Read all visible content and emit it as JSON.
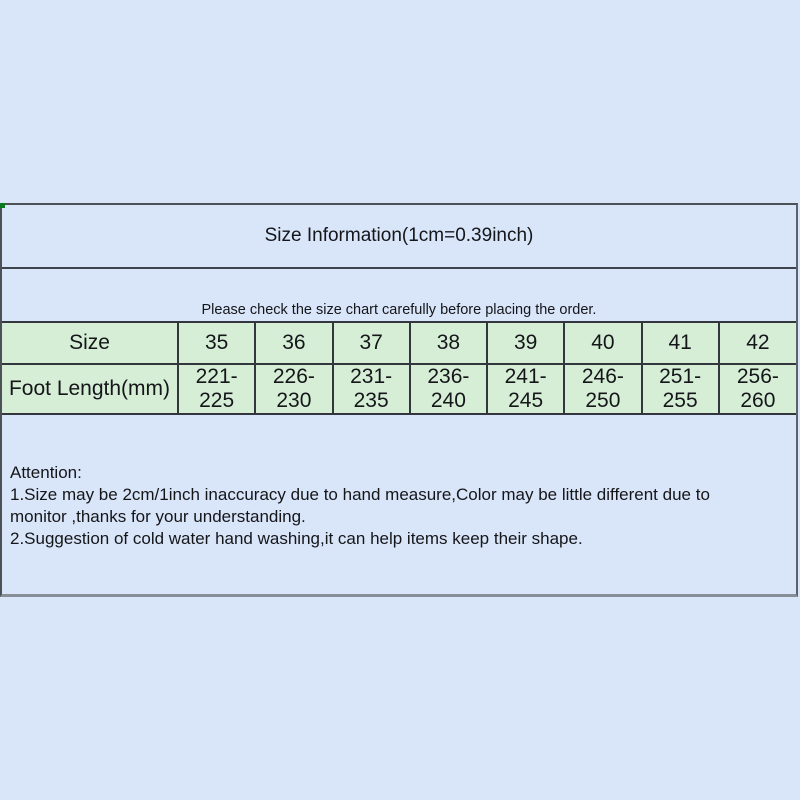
{
  "colors": {
    "background": "#d9e5f8",
    "table_green": "#d6eed6",
    "grid_line": "#33373d",
    "panel_border_dark": "#4c5157",
    "panel_border_light": "#888e96",
    "corner_mark_green": "#0a7a1e",
    "text": "#15161a"
  },
  "panel": {
    "title": "Size Information(1cm=0.39inch)",
    "subtitle": "Please check the size chart carefully before placing the order.",
    "size_table": {
      "size_row_header": "Size",
      "foot_length_row_header": "Foot Length(mm)",
      "sizes": [
        "35",
        "36",
        "37",
        "38",
        "39",
        "40",
        "41",
        "42"
      ],
      "foot_lengths_mm": [
        "221-225",
        "226-230",
        "231-235",
        "236-240",
        "241-245",
        "246-250",
        "251-255",
        "256-260"
      ]
    },
    "attention": {
      "heading": "Attention:",
      "line1": "1.Size may be 2cm/1inch inaccuracy due to hand measure,Color may be little different due to",
      "line1_wrap": "monitor ,thanks for your understanding.",
      "line2": "2.Suggestion of cold water hand washing,it can help items keep their shape."
    }
  }
}
